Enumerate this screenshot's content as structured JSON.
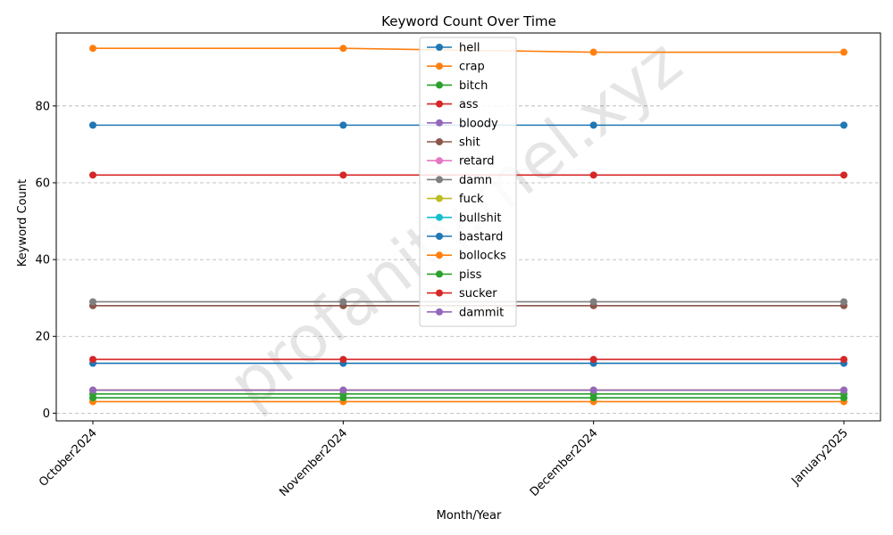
{
  "chart_data": {
    "type": "line",
    "title": "Keyword Count Over Time",
    "xlabel": "Month/Year",
    "ylabel": "Keyword Count",
    "categories": [
      "October2024",
      "November2024",
      "December2024",
      "January2025"
    ],
    "ylim": [
      -2,
      99
    ],
    "yticks": [
      0,
      20,
      40,
      60,
      80
    ],
    "grid": "y-dashed",
    "legend_position": "top-center",
    "watermark": "profanity.mel.xyz",
    "series": [
      {
        "name": "hell",
        "color": "#1f77b4",
        "values": [
          75,
          75,
          75,
          75
        ]
      },
      {
        "name": "crap",
        "color": "#ff7f0e",
        "values": [
          95,
          95,
          94,
          94
        ]
      },
      {
        "name": "bitch",
        "color": "#2ca02c",
        "values": [
          5,
          5,
          5,
          5
        ]
      },
      {
        "name": "ass",
        "color": "#d62728",
        "values": [
          62,
          62,
          62,
          62
        ]
      },
      {
        "name": "bloody",
        "color": "#9467bd",
        "values": [
          6,
          6,
          6,
          6
        ]
      },
      {
        "name": "shit",
        "color": "#8c564b",
        "values": [
          28,
          28,
          28,
          28
        ]
      },
      {
        "name": "retard",
        "color": "#e377c2",
        "values": [
          6,
          6,
          6,
          6
        ]
      },
      {
        "name": "damn",
        "color": "#7f7f7f",
        "values": [
          29,
          29,
          29,
          29
        ]
      },
      {
        "name": "fuck",
        "color": "#bcbd22",
        "values": [
          6,
          6,
          6,
          6
        ]
      },
      {
        "name": "bullshit",
        "color": "#17becf",
        "values": [
          4,
          4,
          4,
          4
        ]
      },
      {
        "name": "bastard",
        "color": "#1f77b4",
        "values": [
          13,
          13,
          13,
          13
        ]
      },
      {
        "name": "bollocks",
        "color": "#ff7f0e",
        "values": [
          3,
          3,
          3,
          3
        ]
      },
      {
        "name": "piss",
        "color": "#2ca02c",
        "values": [
          4,
          4,
          4,
          4
        ]
      },
      {
        "name": "sucker",
        "color": "#d62728",
        "values": [
          14,
          14,
          14,
          14
        ]
      },
      {
        "name": "dammit",
        "color": "#9467bd",
        "values": [
          6,
          6,
          6,
          6
        ]
      }
    ]
  }
}
